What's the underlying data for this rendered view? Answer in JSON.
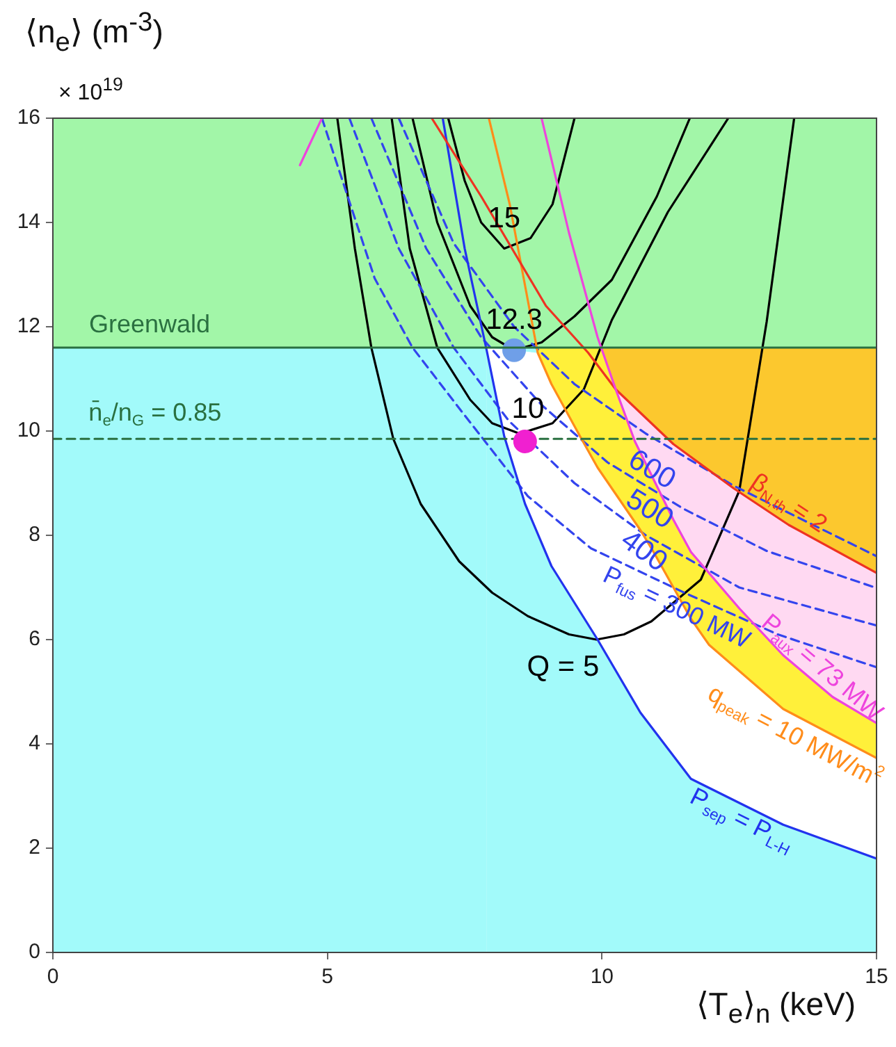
{
  "chart_data": {
    "type": "line",
    "xlabel": "⟨T$_{e}$⟩$_{n}$ (keV)",
    "ylabel": "⟨n$_{e}$⟩ (m$^{-3}$)",
    "xlim": [
      0,
      15
    ],
    "ylim": [
      0,
      16
    ],
    "xticks": [
      0,
      5,
      10,
      15
    ],
    "yticks": [
      0,
      2,
      4,
      6,
      8,
      10,
      12,
      14,
      16
    ],
    "bands": [
      {
        "axis": "y",
        "from": 11.6,
        "to": 16,
        "color": "#a2f6a8"
      },
      {
        "axis": "y",
        "from": 0,
        "to": 11.6,
        "color": "#a2fafa"
      }
    ],
    "ref_lines": [
      {
        "axis": "y",
        "value": 11.6,
        "label": "Greenwald",
        "color": "#2a7040",
        "line_style": "solid"
      }
    ],
    "series": [
      {
        "type": "area",
        "color": "#fcc82e",
        "x": [
          9.97,
          15
        ],
        "values": [
          11.6,
          11.6
        ]
      },
      {
        "type": "area",
        "color": "#ffd9f2",
        "x": [
          10.25,
          11.3,
          12.4,
          13.4,
          15
        ],
        "values": [
          10.8,
          9.75,
          8.9,
          8.2,
          7.28
        ]
      },
      {
        "type": "area",
        "color": "#fff03a",
        "x": [
          8.83,
          9.97,
          10.25,
          10.6,
          11.3,
          11.62,
          12.5,
          13.3,
          14.2,
          15
        ],
        "values": [
          11.6,
          11.6,
          10.8,
          9.8,
          8.3,
          7.68,
          6.6,
          5.7,
          4.9,
          4.4
        ]
      },
      {
        "type": "area",
        "color": "#ffffff",
        "x": [
          7.9,
          8.83,
          9.08,
          9.6,
          9.92,
          10.7,
          10.94,
          11.62,
          11.95,
          13.3,
          15
        ],
        "values": [
          11.6,
          11.5,
          10.9,
          9.9,
          9.3,
          8.1,
          7.68,
          6.4,
          5.9,
          4.67,
          3.73
        ]
      },
      {
        "type": "area",
        "color": "#a2fafa",
        "x": [
          7.9,
          8.22,
          8.6,
          9.08,
          9.92,
          10.7,
          11.62,
          13.3,
          15
        ],
        "values": [
          11.55,
          9.9,
          8.6,
          7.41,
          6.0,
          4.6,
          3.33,
          2.45,
          1.8
        ]
      },
      {
        "type": "line",
        "name": "Q = 5",
        "color": "#000000",
        "x": [
          5.18,
          5.5,
          5.8,
          6.2,
          6.7,
          7.4,
          8.0,
          8.65,
          9.4,
          9.9,
          10.4,
          10.9,
          11.8,
          12.5,
          13.0,
          13.5
        ],
        "values": [
          16,
          13.5,
          11.6,
          9.85,
          8.6,
          7.5,
          6.9,
          6.45,
          6.1,
          6.0,
          6.1,
          6.35,
          7.15,
          8.85,
          12.1,
          16
        ]
      },
      {
        "type": "line",
        "name": "10",
        "color": "#000000",
        "x": [
          6.17,
          6.5,
          7.0,
          7.6,
          8.0,
          8.5,
          9.1,
          9.67,
          10.18,
          11.2,
          12.3
        ],
        "values": [
          16,
          13.5,
          11.6,
          10.6,
          10.15,
          9.95,
          10.15,
          10.8,
          12.13,
          14.2,
          16
        ]
      },
      {
        "type": "line",
        "name": "12.3",
        "color": "#000000",
        "x": [
          6.55,
          7.0,
          7.6,
          8.0,
          8.4,
          8.9,
          9.5,
          10.18,
          11.0,
          11.6
        ],
        "values": [
          16,
          14,
          12.4,
          11.8,
          11.55,
          11.7,
          12.2,
          12.9,
          14.5,
          16
        ]
      },
      {
        "type": "line",
        "name": "15",
        "color": "#000000",
        "x": [
          7.2,
          7.5,
          7.8,
          8.22,
          8.7,
          9.1,
          9.5
        ],
        "values": [
          16,
          14.8,
          14.0,
          13.5,
          13.7,
          14.35,
          16
        ]
      },
      {
        "type": "line",
        "name": "P$_{fus}$ = 300 MW",
        "color": "#3344ee",
        "line_style": "dashed",
        "x": [
          4.9,
          5.86,
          6.55,
          7.39,
          8.65,
          9.8,
          11.5,
          13.2,
          15
        ],
        "values": [
          16,
          12.93,
          11.6,
          10.45,
          8.75,
          7.75,
          6.9,
          6.1,
          5.47
        ]
      },
      {
        "type": "line",
        "name": "400",
        "color": "#3344ee",
        "line_style": "dashed",
        "x": [
          5.4,
          6.3,
          7.3,
          8.3,
          9.5,
          10.8,
          12.5,
          15
        ],
        "values": [
          16,
          13.5,
          11.6,
          10.2,
          9.0,
          8.0,
          7.0,
          6.27
        ]
      },
      {
        "type": "line",
        "name": "500",
        "color": "#3344ee",
        "line_style": "dashed",
        "x": [
          5.8,
          6.8,
          7.8,
          8.9,
          10.1,
          11.5,
          13.0,
          15
        ],
        "values": [
          16,
          13.5,
          11.8,
          10.5,
          9.4,
          8.5,
          7.7,
          6.99
        ]
      },
      {
        "type": "line",
        "name": "600",
        "color": "#3344ee",
        "line_style": "dashed",
        "x": [
          6.3,
          7.3,
          8.4,
          9.5,
          10.8,
          12.4,
          15
        ],
        "values": [
          16,
          13.6,
          12.0,
          10.9,
          9.95,
          8.95,
          7.6
        ]
      },
      {
        "type": "line",
        "name": "P$_{sep}$ = P$_{L-H}$",
        "color": "#2233ee",
        "x": [
          7.1,
          7.5,
          7.9,
          8.22,
          8.6,
          9.08,
          9.92,
          10.7,
          11.62,
          13.3,
          15
        ],
        "values": [
          16,
          13.5,
          11.55,
          9.9,
          8.6,
          7.41,
          6.0,
          4.6,
          3.33,
          2.45,
          1.8
        ]
      },
      {
        "type": "line",
        "name": "q$_{peak}$ = 10 MW/m$^{2}$",
        "color": "#ff8c1a",
        "x": [
          7.94,
          8.32,
          8.83,
          9.08,
          9.6,
          9.92,
          10.7,
          10.94,
          11.62,
          11.95,
          13.3,
          15
        ],
        "values": [
          16,
          14.35,
          11.5,
          10.9,
          9.9,
          9.3,
          8.1,
          7.68,
          6.4,
          5.9,
          4.67,
          3.73
        ]
      },
      {
        "type": "line",
        "name": "β$_{N,th}$ = 2",
        "color": "#ee3322",
        "x": [
          6.9,
          7.8,
          8.98,
          9.75,
          10.25,
          11.3,
          12.4,
          13.4,
          15
        ],
        "values": [
          16,
          14.5,
          12.4,
          11.5,
          10.8,
          9.75,
          8.9,
          8.2,
          7.28
        ]
      },
      {
        "type": "line",
        "name": "P$_{aux}$ = 73 MW",
        "color": "#ee44dd",
        "x": [
          8.9,
          9.4,
          9.92,
          10.25,
          10.6,
          11.3,
          11.62,
          12.5,
          13.3,
          14.2,
          15
        ],
        "values": [
          16,
          13.8,
          11.8,
          10.8,
          9.8,
          8.3,
          7.68,
          6.6,
          5.7,
          4.9,
          4.4
        ]
      },
      {
        "type": "line",
        "color": "#ee44dd",
        "x": [
          4.5,
          4.9
        ],
        "values": [
          15.1,
          16
        ]
      },
      {
        "type": "scatter",
        "marker": "circle",
        "x": [
          8.4,
          8.6
        ],
        "values": [
          11.55,
          9.8
        ],
        "colors": [
          "#6f9fe8",
          "#f020d0"
        ]
      },
      {
        "type": "line",
        "name": "n̄$_{e}$/n$_{G}$ = 0.85",
        "color": "#2a7040",
        "line_style": "dashed",
        "x": [
          0,
          15
        ],
        "values": [
          9.85,
          9.85
        ]
      }
    ],
    "annotations": [
      "× 10$^{19}$"
    ]
  }
}
